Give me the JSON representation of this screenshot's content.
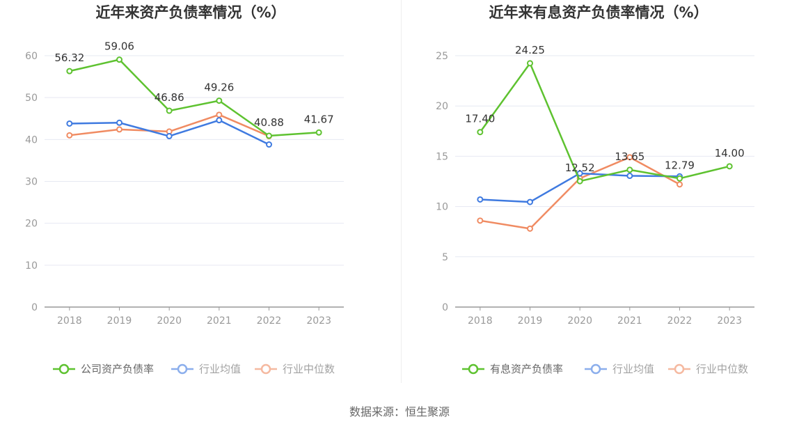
{
  "source_text": "数据来源：恒生聚源",
  "colors": {
    "series_primary": "#5ec230",
    "series_avg": "#3f7ae0",
    "series_median": "#f08b62",
    "grid": "#e6e8f2",
    "axis": "#999999"
  },
  "chart_data": [
    {
      "type": "line",
      "title": "近年来资产负债率情况（%）",
      "categories": [
        "2018",
        "2019",
        "2020",
        "2021",
        "2022",
        "2023"
      ],
      "ylim": [
        0,
        60
      ],
      "yticks": [
        0,
        10,
        20,
        30,
        40,
        50,
        60
      ],
      "grid": true,
      "legend_position": "bottom",
      "series": [
        {
          "name": "公司资产负债率",
          "values": [
            56.32,
            59.06,
            46.86,
            49.26,
            40.88,
            41.67
          ],
          "labels": [
            "56.32",
            "59.06",
            "46.86",
            "49.26",
            "40.88",
            "41.67"
          ]
        },
        {
          "name": "行业均值",
          "values": [
            43.8,
            44.0,
            40.8,
            44.6,
            38.8,
            null
          ]
        },
        {
          "name": "行业中位数",
          "values": [
            41.0,
            42.4,
            41.9,
            45.9,
            40.8,
            null
          ]
        }
      ]
    },
    {
      "type": "line",
      "title": "近年来有息资产负债率情况（%）",
      "categories": [
        "2018",
        "2019",
        "2020",
        "2021",
        "2022",
        "2023"
      ],
      "ylim": [
        0,
        25
      ],
      "yticks": [
        0,
        5,
        10,
        15,
        20,
        25
      ],
      "grid": true,
      "legend_position": "bottom",
      "series": [
        {
          "name": "有息资产负债率",
          "values": [
            17.4,
            24.25,
            12.52,
            13.65,
            12.79,
            14.0
          ],
          "labels": [
            "17.40",
            "24.25",
            "12.52",
            "13.65",
            "12.79",
            "14.00"
          ]
        },
        {
          "name": "行业均值",
          "values": [
            10.7,
            10.45,
            13.3,
            13.05,
            13.0,
            null
          ]
        },
        {
          "name": "行业中位数",
          "values": [
            8.6,
            7.8,
            12.8,
            14.9,
            12.2,
            null
          ]
        }
      ]
    }
  ]
}
